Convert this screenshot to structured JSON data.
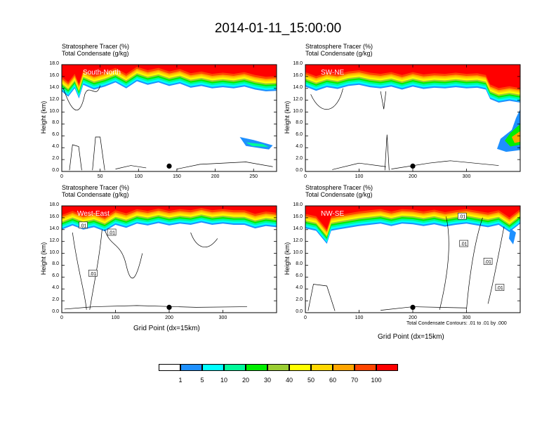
{
  "figure_title": "2014-01-11_15:00:00",
  "colorbar": {
    "levels": [
      "1",
      "5",
      "10",
      "20",
      "30",
      "40",
      "50",
      "60",
      "70",
      "100"
    ],
    "colors": [
      "#ffffff",
      "#1e90ff",
      "#00ffff",
      "#00fa9a",
      "#00ee00",
      "#9acd32",
      "#ffff00",
      "#ffd700",
      "#ffa500",
      "#ff4500",
      "#ff0000"
    ]
  },
  "contour_note": "Total Condensate Contours: .01 to .01 by .000",
  "x_label": "Grid Point (dx=15km)",
  "chart_data": [
    {
      "type": "contour",
      "panel": "south-north",
      "title_lines": [
        "Stratosphere Tracer   (%)",
        "Total Condensate   (g/kg)"
      ],
      "annotation": "South-North",
      "ylabel": "Height (km)",
      "ylim": [
        0,
        18
      ],
      "yticks": [
        "0.0",
        "2.0",
        "4.0",
        "6.0",
        "8.0",
        "10.0",
        "12.0",
        "14.0",
        "16.0",
        "18.0"
      ],
      "xlim": [
        0,
        280
      ],
      "xticks": [
        "0",
        "50",
        "100",
        "150",
        "200",
        "250"
      ],
      "xtick_values": [
        0,
        50,
        100,
        150,
        200,
        250
      ],
      "marker_x": 140,
      "contour_labels": []
    },
    {
      "type": "contour",
      "panel": "sw-ne",
      "title_lines": [
        "Stratosphere Tracer   (%)",
        "Total Condensate   (g/kg)"
      ],
      "annotation": "SW-NE",
      "ylabel": "Height (km)",
      "ylim": [
        0,
        18
      ],
      "yticks": [
        "0.0",
        "2.0",
        "4.0",
        "6.0",
        "8.0",
        "10.0",
        "12.0",
        "14.0",
        "16.0",
        "18.0"
      ],
      "xlim": [
        0,
        400
      ],
      "xticks": [
        "0",
        "100",
        "200",
        "300"
      ],
      "xtick_values": [
        0,
        100,
        200,
        300
      ],
      "marker_x": 200,
      "contour_labels": []
    },
    {
      "type": "contour",
      "panel": "west-east",
      "title_lines": [
        "Stratosphere Tracer   (%)",
        "Total Condensate   (g/kg)"
      ],
      "annotation": "West-East",
      "ylabel": "Height (km)",
      "ylim": [
        0,
        18
      ],
      "yticks": [
        "0.0",
        "2.0",
        "4.0",
        "6.0",
        "8.0",
        "10.0",
        "12.0",
        "14.0",
        "16.0",
        "18.0"
      ],
      "xlim": [
        0,
        400
      ],
      "xticks": [
        "0",
        "100",
        "200",
        "300"
      ],
      "xtick_values": [
        0,
        100,
        200,
        300
      ],
      "marker_x": 200,
      "contour_labels": [
        {
          "text": ".01",
          "x": 40,
          "y": 14.7
        },
        {
          "text": ".01",
          "x": 93,
          "y": 13.5
        },
        {
          "text": ".01",
          "x": 58,
          "y": 6.6
        }
      ]
    },
    {
      "type": "contour",
      "panel": "nw-se",
      "title_lines": [
        "Stratosphere Tracer   (%)",
        "Total Condensate   (g/kg)"
      ],
      "annotation": "NW-SE",
      "ylabel": "Height (km)",
      "ylim": [
        0,
        18
      ],
      "yticks": [
        "0.0",
        "2.0",
        "4.0",
        "6.0",
        "8.0",
        "10.0",
        "12.0",
        "14.0",
        "16.0",
        "18.0"
      ],
      "xlim": [
        0,
        400
      ],
      "xticks": [
        "0",
        "100",
        "200",
        "300"
      ],
      "xtick_values": [
        0,
        100,
        200,
        300
      ],
      "marker_x": 200,
      "contour_labels": [
        {
          "text": ".01",
          "x": 292,
          "y": 16.2
        },
        {
          "text": ".01",
          "x": 295,
          "y": 11.6
        },
        {
          "text": ".01",
          "x": 340,
          "y": 8.6
        },
        {
          "text": ".01",
          "x": 362,
          "y": 4.2
        }
      ]
    }
  ]
}
